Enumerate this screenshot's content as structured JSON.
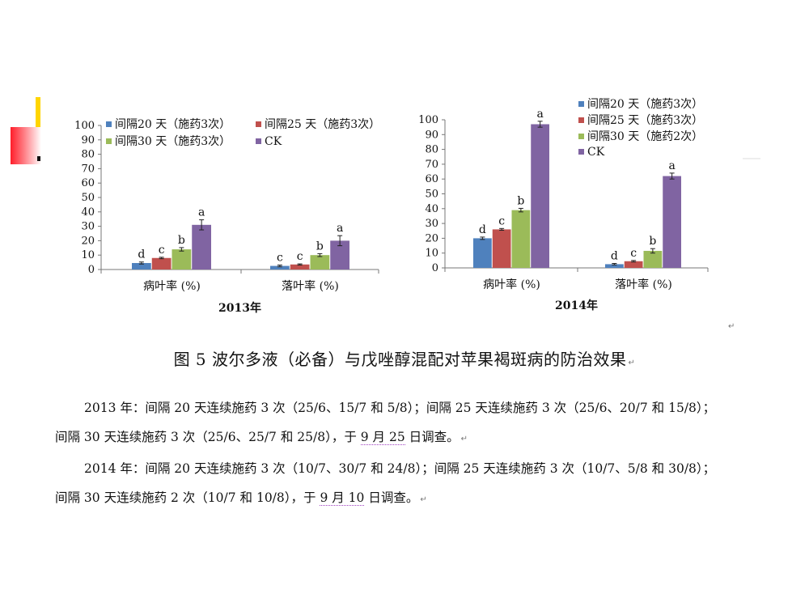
{
  "chart_data": [
    {
      "type": "bar",
      "title": "2013年",
      "categories": [
        "病叶率 (%)",
        "落叶率 (%)"
      ],
      "ylim": [
        0,
        100
      ],
      "yticks": [
        0,
        10,
        20,
        30,
        40,
        50,
        60,
        70,
        80,
        90,
        100
      ],
      "legend_position": "top",
      "grid": false,
      "series": [
        {
          "name": "间隔20 天（施药3次）",
          "color": "#4f81bd",
          "values": [
            4.5,
            2.5
          ],
          "errors": [
            0.7,
            0.6
          ],
          "letters": [
            "d",
            "c"
          ]
        },
        {
          "name": "间隔25 天（施药3次）",
          "color": "#c0504d",
          "values": [
            8,
            3.5
          ],
          "errors": [
            0.5,
            0.4
          ],
          "letters": [
            "c",
            "c"
          ]
        },
        {
          "name": "间隔30 天（施药3次）",
          "color": "#9bbb59",
          "values": [
            14,
            10
          ],
          "errors": [
            1.2,
            1.0
          ],
          "letters": [
            "b",
            "b"
          ]
        },
        {
          "name": "CK",
          "color": "#8064a2",
          "values": [
            31,
            20
          ],
          "errors": [
            3.5,
            3.5
          ],
          "letters": [
            "a",
            "a"
          ]
        }
      ]
    },
    {
      "type": "bar",
      "title": "2014年",
      "categories": [
        "病叶率 (%)",
        "落叶率 (%)"
      ],
      "ylim": [
        0,
        100
      ],
      "yticks": [
        0,
        10,
        20,
        30,
        40,
        50,
        60,
        70,
        80,
        90,
        100
      ],
      "legend_position": "top-right",
      "grid": false,
      "series": [
        {
          "name": "间隔20 天（施药3次）",
          "color": "#4f81bd",
          "values": [
            20,
            2.5
          ],
          "errors": [
            0.8,
            0.5
          ],
          "letters": [
            "d",
            "d"
          ]
        },
        {
          "name": "间隔25 天（施药3次）",
          "color": "#c0504d",
          "values": [
            26,
            4.5
          ],
          "errors": [
            0.6,
            0.5
          ],
          "letters": [
            "c",
            "c"
          ]
        },
        {
          "name": "间隔30 天（施药2次）",
          "color": "#9bbb59",
          "values": [
            39,
            11.5
          ],
          "errors": [
            1.2,
            1.5
          ],
          "letters": [
            "b",
            "b"
          ]
        },
        {
          "name": "CK",
          "color": "#8064a2",
          "values": [
            97,
            62
          ],
          "errors": [
            2.0,
            2.0
          ],
          "letters": [
            "a",
            "a"
          ]
        }
      ]
    }
  ],
  "figure": {
    "caption": "图 5 波尔多液（必备）与戊唑醇混配对苹果褐斑病的防治效果",
    "mark": "↵"
  },
  "notes": {
    "p1_a": "2013 年：间隔 20 天连续施药 3 次（25/6、15/7 和 5/8）；间隔 25 天连续施药 3 次（25/6、20/7 和 15/8）；间隔 30 天连续施药 3 次（25/6、25/7 和 25/8），于 ",
    "p1_date": "9 月 25",
    "p1_b": " 日调查。",
    "p2_a": "2014 年：间隔 20 天连续施药 3 次（10/7、30/7 和 24/8）；间隔 25 天连续施药 3 次（10/7、5/8 和 30/8）；间隔 30 天连续施药 2 次（10/7 和 10/8），于 ",
    "p2_date": "9 月 10",
    "p2_b": " 日调查。"
  }
}
